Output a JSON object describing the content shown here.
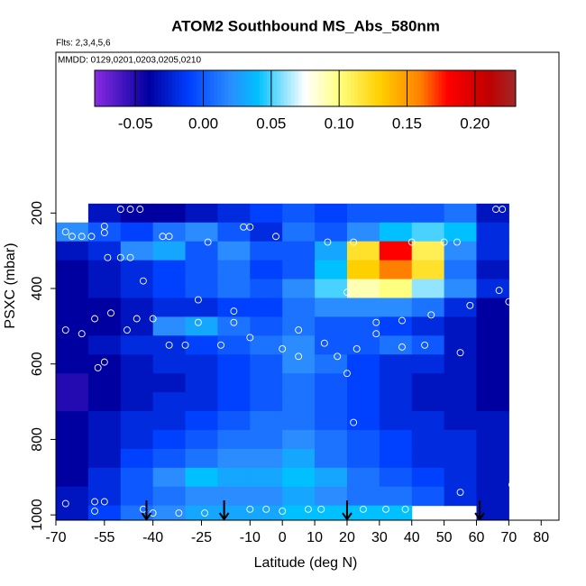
{
  "chart_data": {
    "type": "heatmap",
    "title": "ATOM2 Southbound MS_Abs_580nm",
    "subtitle": "Flts: 2,3,4,5,6",
    "annotation": "MMDD: 0129,0201,0203,0205,0210",
    "x_label": "Latitude (deg N)",
    "y_label": "PSXC (mbar)",
    "xlim": [
      -70,
      85.5
    ],
    "ylim": [
      1014,
      -226
    ],
    "xticks": [
      -70,
      -55,
      -40,
      -25,
      -10,
      0,
      10,
      20,
      30,
      40,
      50,
      60,
      70,
      80
    ],
    "yticks": [
      200,
      400,
      600,
      800,
      1000
    ],
    "x_bins": [
      -70,
      -60,
      -50,
      -40,
      -30,
      -20,
      -10,
      0,
      10,
      20,
      30,
      40,
      50,
      60,
      70
    ],
    "y_bins": [
      175,
      225,
      275,
      325,
      375,
      425,
      475,
      525,
      575,
      625,
      675,
      725,
      775,
      825,
      875,
      925,
      975,
      1025
    ],
    "z": [
      [
        null,
        -0.03,
        -0.04,
        -0.04,
        -0.03,
        -0.02,
        -0.01,
        0.0,
        -0.01,
        0.0,
        0.0,
        0.0,
        0.01,
        -0.03
      ],
      [
        0.02,
        0.0,
        -0.01,
        0.01,
        0.02,
        0.0,
        -0.02,
        0.01,
        0.0,
        0.02,
        0.04,
        0.05,
        0.04,
        -0.02
      ],
      [
        -0.03,
        -0.02,
        0.02,
        0.03,
        0.0,
        0.02,
        0.0,
        0.0,
        0.03,
        0.12,
        0.18,
        0.11,
        0.02,
        -0.02
      ],
      [
        -0.04,
        -0.03,
        -0.02,
        -0.01,
        0.0,
        0.01,
        -0.01,
        0.0,
        0.04,
        0.13,
        0.16,
        0.12,
        0.01,
        -0.03
      ],
      [
        -0.04,
        -0.03,
        -0.02,
        -0.01,
        0.0,
        0.01,
        0.0,
        0.02,
        0.05,
        0.09,
        0.1,
        0.06,
        0.02,
        -0.02
      ],
      [
        -0.04,
        -0.04,
        -0.03,
        -0.02,
        -0.02,
        -0.01,
        -0.01,
        0.01,
        0.02,
        0.02,
        0.02,
        0.01,
        -0.02,
        -0.04
      ],
      [
        -0.04,
        -0.04,
        -0.03,
        0.02,
        0.03,
        0.01,
        0.0,
        0.01,
        0.0,
        0.0,
        -0.01,
        -0.02,
        -0.03,
        -0.04
      ],
      [
        -0.04,
        -0.03,
        -0.02,
        -0.02,
        -0.01,
        0.0,
        0.01,
        0.02,
        0.0,
        0.0,
        0.01,
        0.0,
        -0.03,
        -0.04
      ],
      [
        -0.04,
        -0.04,
        -0.03,
        -0.02,
        -0.02,
        -0.01,
        0.0,
        0.02,
        0.01,
        -0.01,
        -0.02,
        -0.02,
        -0.03,
        -0.04
      ],
      [
        -0.05,
        -0.04,
        -0.03,
        -0.03,
        -0.02,
        -0.01,
        0.0,
        0.01,
        0.0,
        -0.01,
        -0.02,
        -0.03,
        -0.03,
        -0.04
      ],
      [
        -0.05,
        -0.04,
        -0.03,
        -0.02,
        -0.02,
        -0.01,
        0.0,
        0.01,
        0.0,
        -0.01,
        -0.02,
        -0.03,
        -0.03,
        -0.04
      ],
      [
        -0.04,
        -0.03,
        -0.02,
        -0.02,
        -0.01,
        0.0,
        0.01,
        0.01,
        0.0,
        -0.01,
        -0.02,
        -0.02,
        -0.03,
        -0.03
      ],
      [
        -0.04,
        -0.03,
        -0.02,
        -0.01,
        0.0,
        0.01,
        0.01,
        0.02,
        0.01,
        0.0,
        -0.01,
        -0.02,
        -0.02,
        -0.03
      ],
      [
        -0.04,
        -0.03,
        -0.01,
        0.0,
        0.01,
        0.02,
        0.02,
        0.03,
        0.01,
        0.0,
        -0.01,
        -0.02,
        -0.02,
        -0.03
      ],
      [
        -0.04,
        -0.02,
        0.0,
        0.02,
        0.04,
        0.03,
        0.03,
        0.04,
        0.03,
        0.01,
        0.0,
        -0.01,
        -0.02,
        -0.03
      ],
      [
        -0.03,
        -0.02,
        0.0,
        0.01,
        0.02,
        0.02,
        0.02,
        0.03,
        0.02,
        0.01,
        0.01,
        0.0,
        -0.02,
        -0.03
      ],
      [
        -0.03,
        -0.01,
        0.01,
        0.02,
        0.03,
        0.03,
        0.03,
        0.04,
        0.04,
        0.04,
        0.04,
        null,
        null,
        -0.03
      ]
    ],
    "clim": [
      -0.08,
      0.23
    ],
    "colorscale": [
      [
        -0.08,
        "#8a2be2"
      ],
      [
        -0.04,
        "#0000a0"
      ],
      [
        -0.01,
        "#0040ff"
      ],
      [
        0.02,
        "#2a8cff"
      ],
      [
        0.04,
        "#00c0ff"
      ],
      [
        0.075,
        "#ffffff"
      ],
      [
        0.1,
        "#ffff80"
      ],
      [
        0.13,
        "#ffd000"
      ],
      [
        0.16,
        "#ff8000"
      ],
      [
        0.18,
        "#ff0000"
      ],
      [
        0.21,
        "#c00000"
      ],
      [
        0.23,
        "#a02828"
      ]
    ],
    "cticks": [
      -0.05,
      {
        "value": 0,
        "label": "0.00"
      },
      0.05,
      {
        "value": 0.1,
        "label": "0.10"
      },
      0.15,
      {
        "value": 0.2,
        "label": "0.20"
      }
    ],
    "points": {
      "x": [
        -50,
        -47,
        -44,
        -67,
        -65,
        -62,
        -59,
        -55,
        -55,
        -37,
        -35,
        -23,
        -12,
        -10,
        -2,
        14,
        22,
        40,
        50,
        54,
        66,
        68,
        -54,
        -50,
        -47,
        -43,
        -26,
        -58,
        -53,
        -45,
        -40,
        -26,
        -15,
        -15,
        -10,
        5,
        13,
        20,
        29,
        37,
        46,
        58,
        67,
        70,
        -67,
        -62,
        -48,
        -35,
        -30,
        -19,
        0,
        5,
        17,
        23,
        29,
        37,
        44,
        55,
        -57,
        -55,
        20,
        22,
        55,
        71,
        -67,
        -58,
        -55,
        -58,
        -43,
        -40,
        -32,
        -24,
        -10,
        -5,
        0,
        8,
        12,
        25,
        32,
        38,
        42,
        48
      ],
      "y": [
        190,
        190,
        190,
        250,
        262,
        262,
        262,
        235,
        252,
        262,
        262,
        277,
        237,
        237,
        262,
        277,
        277,
        277,
        277,
        277,
        190,
        190,
        318,
        318,
        318,
        380,
        430,
        480,
        465,
        480,
        480,
        490,
        460,
        490,
        530,
        510,
        545,
        410,
        490,
        485,
        470,
        445,
        405,
        435,
        510,
        520,
        510,
        550,
        550,
        550,
        560,
        580,
        580,
        560,
        520,
        555,
        550,
        570,
        610,
        595,
        625,
        755,
        940,
        920,
        970,
        965,
        965,
        990,
        985,
        995,
        995,
        995,
        985,
        985,
        990,
        985,
        985,
        985,
        985,
        985,
        1000,
        995
      ],
      "color": "#ffffff"
    },
    "arrows_x": [
      -42,
      -18,
      20,
      61
    ]
  }
}
